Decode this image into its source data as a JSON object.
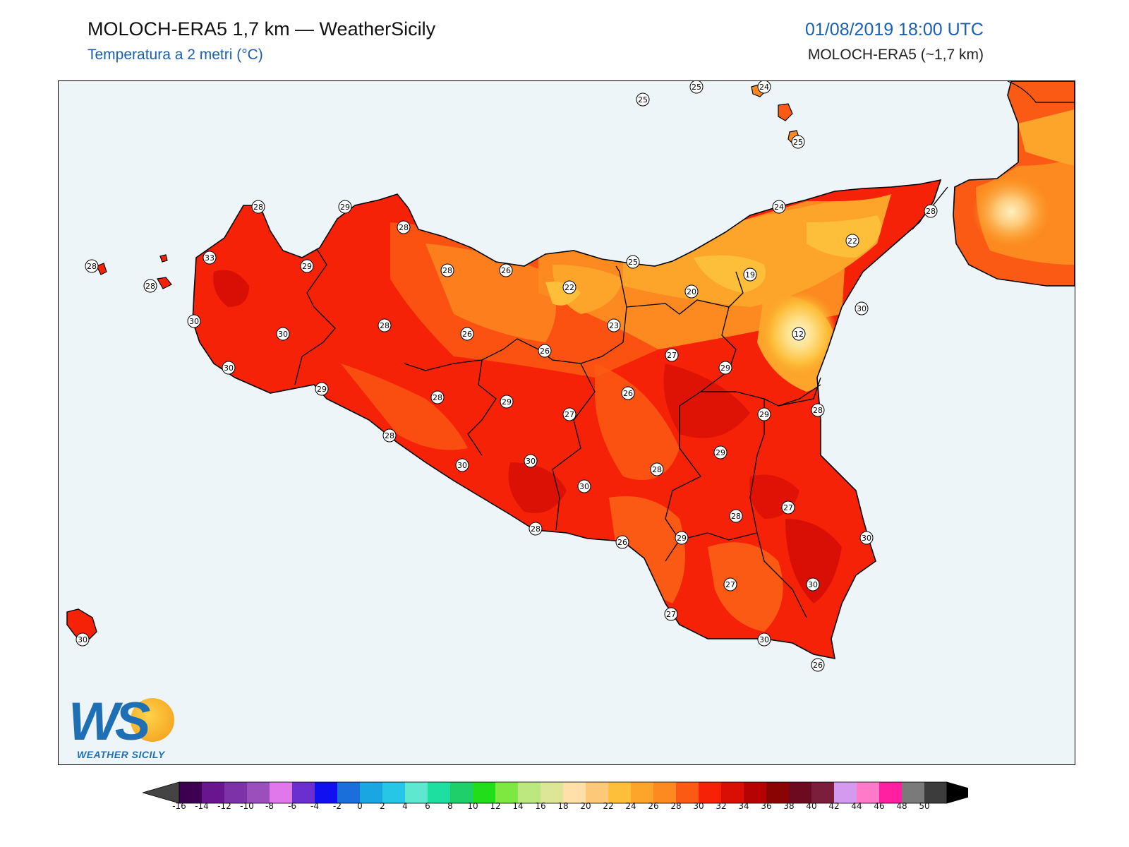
{
  "header": {
    "title": "MOLOCH-ERA5 1,7 km — WeatherSicily",
    "subtitle": "Temperatura a 2 metri (°C)",
    "datetime": "01/08/2019 18:00 UTC",
    "model": "MOLOCH-ERA5 (~1,7 km)"
  },
  "logo": {
    "letters": "WS",
    "text": "WEATHER SICILY"
  },
  "colors": {
    "sea": "#eef5f9",
    "outline": "#000000",
    "marker_fill": "#ffffff"
  },
  "stations": [
    {
      "v": "25"
    },
    {
      "v": "25"
    },
    {
      "v": "24"
    },
    {
      "v": "25"
    },
    {
      "v": "28"
    },
    {
      "v": "29"
    },
    {
      "v": "28"
    },
    {
      "v": "24"
    },
    {
      "v": "28"
    },
    {
      "v": "28"
    },
    {
      "v": "33"
    },
    {
      "v": "29"
    },
    {
      "v": "28"
    },
    {
      "v": "26"
    },
    {
      "v": "25"
    },
    {
      "v": "22"
    },
    {
      "v": "28"
    },
    {
      "v": "22"
    },
    {
      "v": "19"
    },
    {
      "v": "20"
    },
    {
      "v": "30"
    },
    {
      "v": "30"
    },
    {
      "v": "30"
    },
    {
      "v": "28"
    },
    {
      "v": "26"
    },
    {
      "v": "23"
    },
    {
      "v": "12"
    },
    {
      "v": "30"
    },
    {
      "v": "26"
    },
    {
      "v": "27"
    },
    {
      "v": "29"
    },
    {
      "v": "29"
    },
    {
      "v": "28"
    },
    {
      "v": "26"
    },
    {
      "v": "29"
    },
    {
      "v": "27"
    },
    {
      "v": "29"
    },
    {
      "v": "28"
    },
    {
      "v": "28"
    },
    {
      "v": "30"
    },
    {
      "v": "30"
    },
    {
      "v": "29"
    },
    {
      "v": "28"
    },
    {
      "v": "30"
    },
    {
      "v": "27"
    },
    {
      "v": "28"
    },
    {
      "v": "28"
    },
    {
      "v": "26"
    },
    {
      "v": "29"
    },
    {
      "v": "30"
    },
    {
      "v": "27"
    },
    {
      "v": "30"
    },
    {
      "v": "27"
    },
    {
      "v": "30"
    },
    {
      "v": "26"
    },
    {
      "v": "30"
    }
  ],
  "colorbar": {
    "ticks": [
      "-16",
      "-14",
      "-12",
      "-10",
      "-8",
      "-6",
      "-4",
      "-2",
      "0",
      "2",
      "4",
      "6",
      "8",
      "10",
      "12",
      "14",
      "16",
      "18",
      "20",
      "22",
      "24",
      "26",
      "28",
      "30",
      "32",
      "34",
      "36",
      "38",
      "40",
      "42",
      "44",
      "46",
      "48",
      "50"
    ],
    "under_color": "#444444",
    "over_color": "#000000",
    "colors": [
      "#3d0050",
      "#6a1590",
      "#7d32a8",
      "#9a4fbd",
      "#e077ea",
      "#6b2fd0",
      "#1010f0",
      "#1b6fdb",
      "#1aa6e0",
      "#27c6e6",
      "#5ee8d0",
      "#1cdfa0",
      "#1ecf6a",
      "#22dd1a",
      "#7fe840",
      "#bde880",
      "#dde597",
      "#ffe0a8",
      "#fdc978",
      "#fdbf3a",
      "#fca52a",
      "#fc8a20",
      "#fb5a14",
      "#f52208",
      "#d90f05",
      "#b50303",
      "#8a0404",
      "#6e0a20",
      "#7a1e3c",
      "#d49af0",
      "#ff7ac8",
      "#ff1fa0",
      "#7a7a7a",
      "#3c3c3c"
    ]
  }
}
